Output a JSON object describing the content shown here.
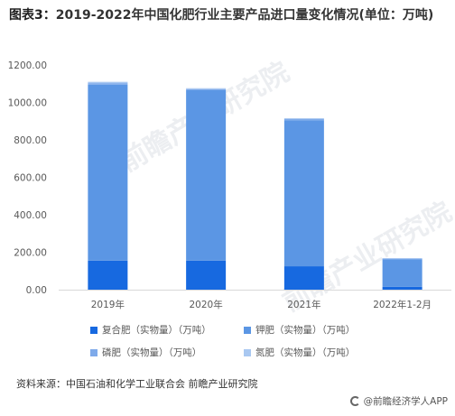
{
  "title": {
    "prefix": "图表3：",
    "text": "2019-2022年中国化肥行业主要产品进口量变化情况(单位：万吨)"
  },
  "source": "资料来源：中国石油和化学工业联合会 前瞻产业研究院",
  "brand": "@前瞻经济学人APP",
  "watermark": "前瞻产业研究院",
  "chart_data": {
    "type": "bar",
    "stacked": true,
    "categories": [
      "2019年",
      "2020年",
      "2021年",
      "2022年1-2月"
    ],
    "ylim": [
      0,
      1200
    ],
    "yticks": [
      "0.00",
      "200.00",
      "400.00",
      "600.00",
      "800.00",
      "1000.00",
      "1200.00"
    ],
    "ytick_values": [
      0,
      200,
      400,
      600,
      800,
      1000,
      1200
    ],
    "grid": false,
    "legend_position": "bottom",
    "series": [
      {
        "name": "复合肥（实物量）（万吨）",
        "color": "#1769e0",
        "values": [
          155,
          155,
          125,
          15
        ]
      },
      {
        "name": "钾肥（实物量）（万吨）",
        "color": "#5b96e4",
        "values": [
          940,
          910,
          780,
          148
        ]
      },
      {
        "name": "磷肥（实物量）（万吨）",
        "color": "#7eaaea",
        "values": [
          8,
          6,
          6,
          3
        ]
      },
      {
        "name": "氮肥（实物量）（万吨）",
        "color": "#a9c8f1",
        "values": [
          7,
          5,
          5,
          2
        ]
      }
    ]
  }
}
